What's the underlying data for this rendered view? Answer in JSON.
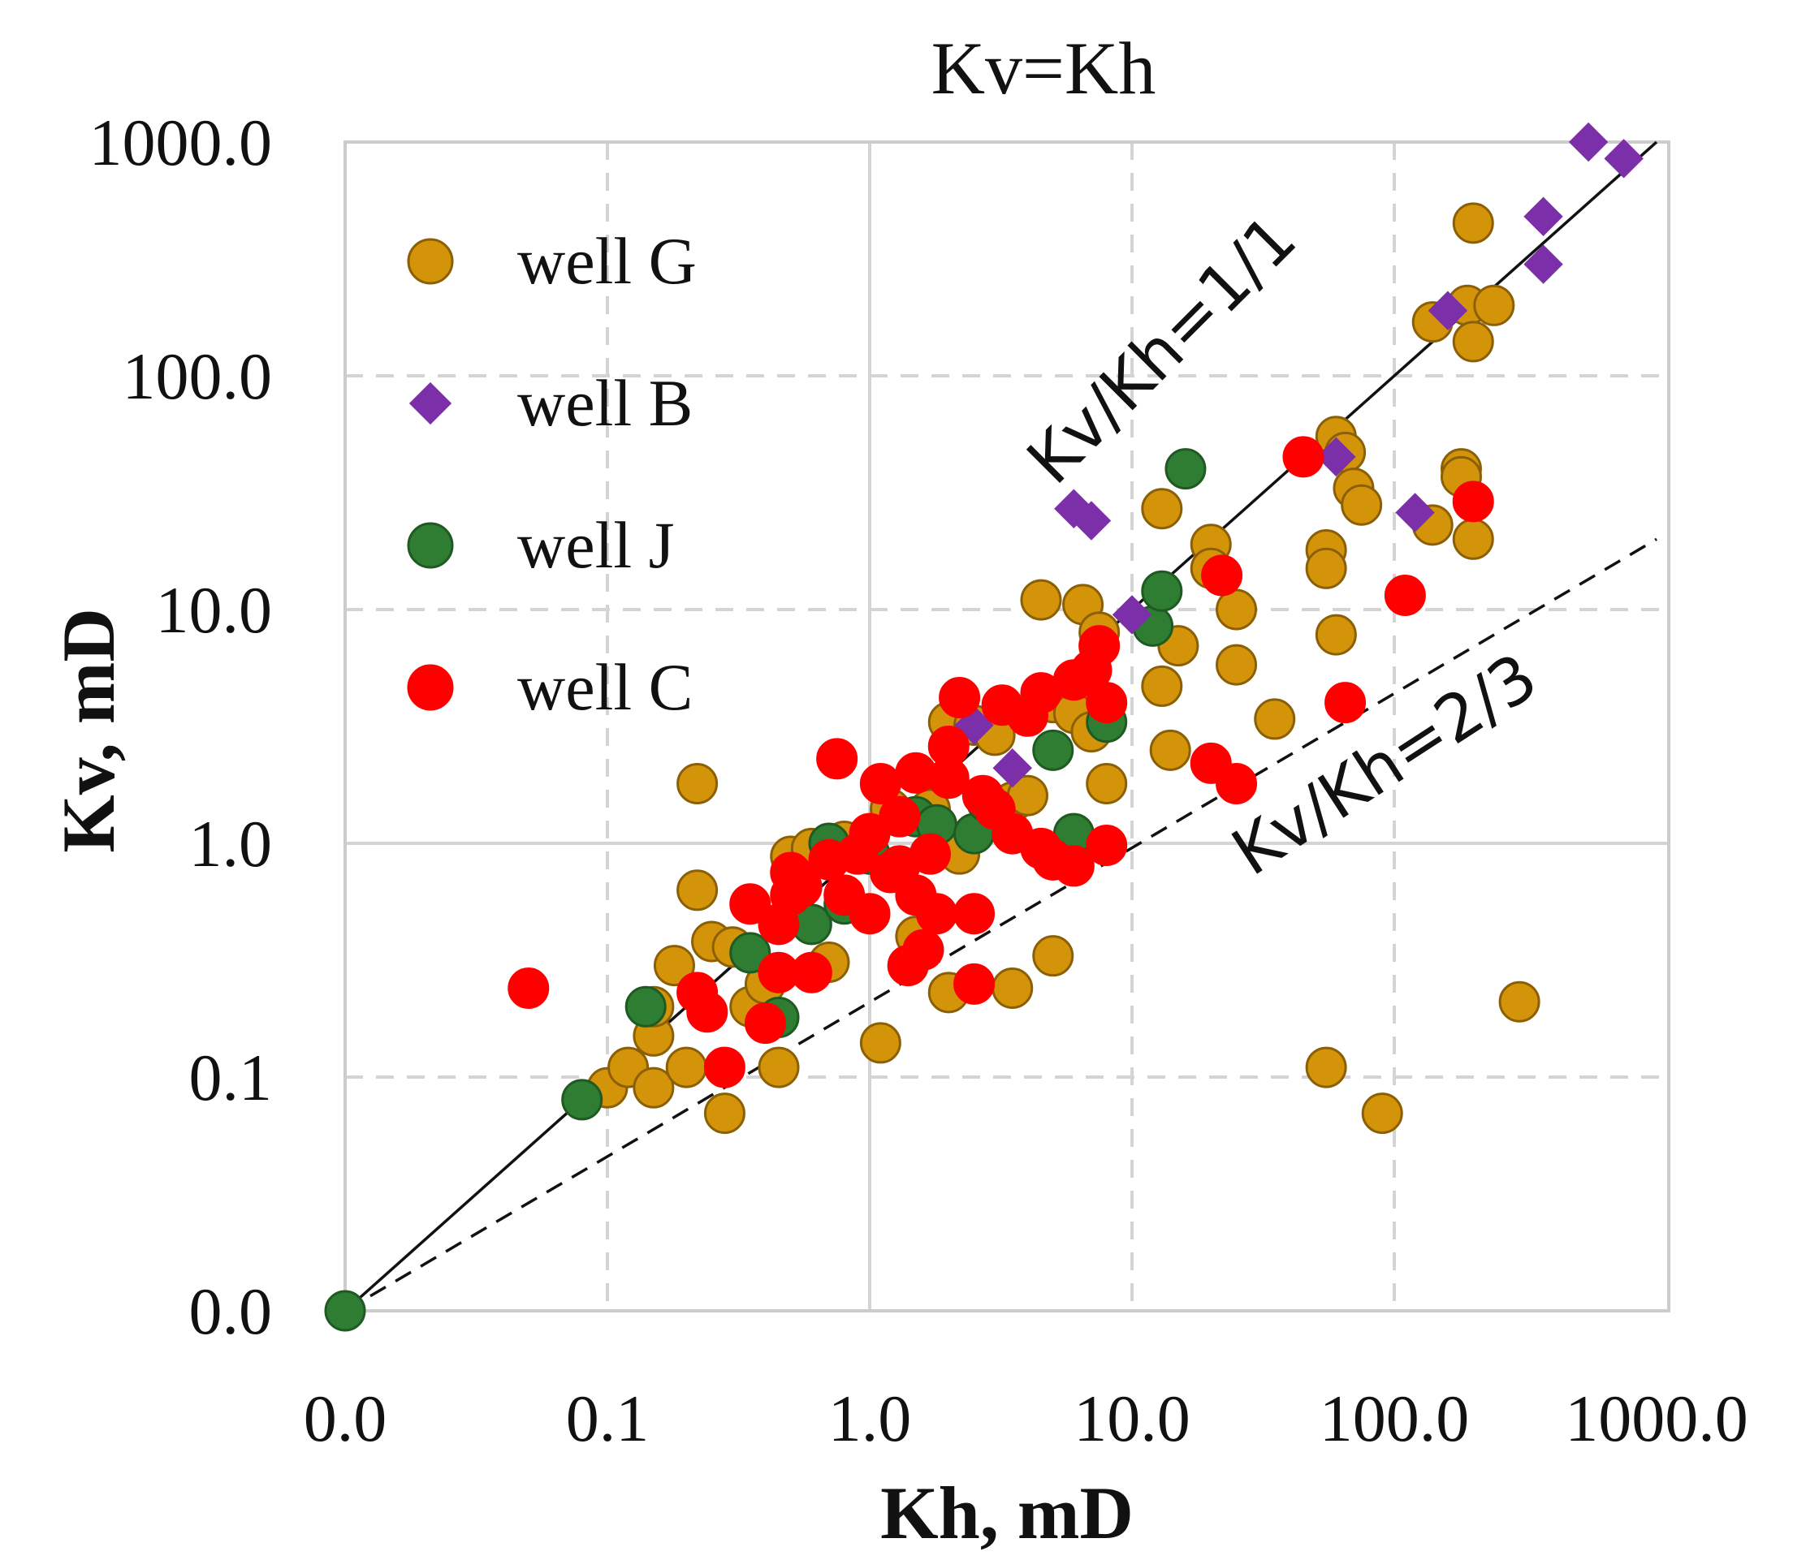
{
  "chart_data": {
    "type": "scatter",
    "title": "Kv=Kh",
    "xlabel": "Kh, mD",
    "ylabel": "Kv, mD",
    "x_scale": "log-like",
    "x_tick_labels": [
      "0.0",
      "0.1",
      "1.0",
      "10.0",
      "100.0",
      "1000.0"
    ],
    "y_tick_labels": [
      "0.0",
      "0.1",
      "1.0",
      "10.0",
      "100.0",
      "1000.0"
    ],
    "xlim": [
      0.01,
      1000
    ],
    "ylim": [
      0.01,
      1000
    ],
    "grid": true,
    "legend_position": "top-left",
    "reference_lines": [
      {
        "label": "Kv/Kh=1/1",
        "style": "solid",
        "points": [
          [
            0.01,
            0.01
          ],
          [
            1000,
            1000
          ]
        ]
      },
      {
        "label": "Kv/Kh=2/3",
        "style": "dashed",
        "points": [
          [
            0.01,
            0.01
          ],
          [
            1000,
            20
          ]
        ]
      }
    ],
    "series": [
      {
        "name": "well G",
        "marker": "circle",
        "color": "#D4940A",
        "edge": "#8A5F05",
        "points": [
          [
            0.1,
            0.09
          ],
          [
            0.12,
            0.11
          ],
          [
            0.15,
            0.09
          ],
          [
            0.15,
            0.15
          ],
          [
            0.15,
            0.2
          ],
          [
            0.18,
            0.3
          ],
          [
            0.2,
            0.11
          ],
          [
            0.22,
            1.8
          ],
          [
            0.22,
            0.63
          ],
          [
            0.25,
            0.38
          ],
          [
            0.28,
            0.07
          ],
          [
            0.3,
            0.36
          ],
          [
            0.35,
            0.2
          ],
          [
            0.4,
            0.25
          ],
          [
            0.45,
            0.11
          ],
          [
            0.5,
            0.88
          ],
          [
            0.6,
            0.95
          ],
          [
            0.7,
            0.31
          ],
          [
            0.8,
            1.02
          ],
          [
            1.1,
            0.14
          ],
          [
            1.2,
            1.4
          ],
          [
            1.5,
            0.4
          ],
          [
            1.7,
            1.4
          ],
          [
            2,
            3.3
          ],
          [
            2,
            0.23
          ],
          [
            2.2,
            0.9
          ],
          [
            2.5,
            3.2
          ],
          [
            3,
            2.9
          ],
          [
            3.5,
            0.24
          ],
          [
            3.5,
            1.5
          ],
          [
            4,
            1.6
          ],
          [
            4.5,
            11
          ],
          [
            5,
            0.33
          ],
          [
            5,
            4
          ],
          [
            6,
            3.6
          ],
          [
            6.5,
            10.5
          ],
          [
            7,
            3
          ],
          [
            7.5,
            8
          ],
          [
            8,
            1.8
          ],
          [
            13,
            27
          ],
          [
            13,
            4.7
          ],
          [
            14,
            2.5
          ],
          [
            15,
            7
          ],
          [
            20,
            19
          ],
          [
            20,
            15
          ],
          [
            25,
            10
          ],
          [
            25,
            5.8
          ],
          [
            35,
            3.4
          ],
          [
            55,
            18
          ],
          [
            55,
            15
          ],
          [
            55,
            0.11
          ],
          [
            60,
            7.8
          ],
          [
            60,
            55
          ],
          [
            65,
            47
          ],
          [
            70,
            33
          ],
          [
            75,
            28
          ],
          [
            90,
            0.07
          ],
          [
            140,
            23
          ],
          [
            140,
            170
          ],
          [
            180,
            40
          ],
          [
            180,
            37
          ],
          [
            190,
            200
          ],
          [
            200,
            140
          ],
          [
            200,
            20
          ],
          [
            240,
            200
          ],
          [
            300,
            0.21
          ],
          [
            200,
            450
          ]
        ]
      },
      {
        "name": "well B",
        "marker": "diamond",
        "color": "#7B2FA8",
        "edge": "#7B2FA8",
        "points": [
          [
            2.5,
            3.2
          ],
          [
            3.5,
            2.1
          ],
          [
            6,
            27
          ],
          [
            7,
            24
          ],
          [
            10,
            9.5
          ],
          [
            60,
            45
          ],
          [
            120,
            26
          ],
          [
            160,
            190
          ],
          [
            370,
            480
          ],
          [
            370,
            300
          ],
          [
            550,
            1000
          ],
          [
            750,
            850
          ]
        ]
      },
      {
        "name": "well J",
        "marker": "circle",
        "color": "#2E7D32",
        "edge": "#1F5A22",
        "points": [
          [
            0.01,
            0.01
          ],
          [
            0.08,
            0.08
          ],
          [
            0.14,
            0.2
          ],
          [
            0.35,
            0.34
          ],
          [
            0.45,
            0.18
          ],
          [
            0.6,
            0.45
          ],
          [
            0.7,
            1
          ],
          [
            0.8,
            0.55
          ],
          [
            1,
            0.9
          ],
          [
            1.5,
            1.3
          ],
          [
            1.8,
            1.2
          ],
          [
            2.5,
            1.1
          ],
          [
            2.8,
            1.5
          ],
          [
            5,
            2.5
          ],
          [
            6,
            1.1
          ],
          [
            8,
            3.3
          ],
          [
            12,
            8.5
          ],
          [
            13,
            12
          ],
          [
            16,
            40
          ]
        ]
      },
      {
        "name": "well C",
        "marker": "circle",
        "color": "#FF0000",
        "edge": "#FF0000",
        "points": [
          [
            0.05,
            0.24
          ],
          [
            0.22,
            0.23
          ],
          [
            0.24,
            0.19
          ],
          [
            0.28,
            0.11
          ],
          [
            0.35,
            0.55
          ],
          [
            0.4,
            0.17
          ],
          [
            0.45,
            0.45
          ],
          [
            0.45,
            0.28
          ],
          [
            0.5,
            0.6
          ],
          [
            0.5,
            0.75
          ],
          [
            0.55,
            0.65
          ],
          [
            0.6,
            0.28
          ],
          [
            0.7,
            0.85
          ],
          [
            0.75,
            2.3
          ],
          [
            0.8,
            0.6
          ],
          [
            0.9,
            0.9
          ],
          [
            1,
            0.5
          ],
          [
            1,
            1.1
          ],
          [
            1.1,
            1.8
          ],
          [
            1.2,
            0.75
          ],
          [
            1.3,
            0.8
          ],
          [
            1.3,
            1.3
          ],
          [
            1.4,
            0.3
          ],
          [
            1.5,
            2
          ],
          [
            1.5,
            0.6
          ],
          [
            1.6,
            0.35
          ],
          [
            1.7,
            0.9
          ],
          [
            1.8,
            0.5
          ],
          [
            2,
            1.9
          ],
          [
            2,
            2.6
          ],
          [
            2.2,
            4.2
          ],
          [
            2.5,
            0.5
          ],
          [
            2.5,
            0.25
          ],
          [
            2.7,
            1.6
          ],
          [
            3,
            1.4
          ],
          [
            3.2,
            3.9
          ],
          [
            3.5,
            1.1
          ],
          [
            4,
            3.5
          ],
          [
            4.5,
            4.4
          ],
          [
            4.5,
            0.95
          ],
          [
            5,
            0.85
          ],
          [
            6,
            0.8
          ],
          [
            6,
            5
          ],
          [
            7,
            5.5
          ],
          [
            7.5,
            7
          ],
          [
            8,
            4
          ],
          [
            8,
            0.98
          ],
          [
            20,
            2.2
          ],
          [
            22,
            14
          ],
          [
            25,
            1.8
          ],
          [
            45,
            45
          ],
          [
            65,
            4
          ],
          [
            110,
            11.5
          ],
          [
            200,
            29
          ]
        ]
      }
    ]
  }
}
